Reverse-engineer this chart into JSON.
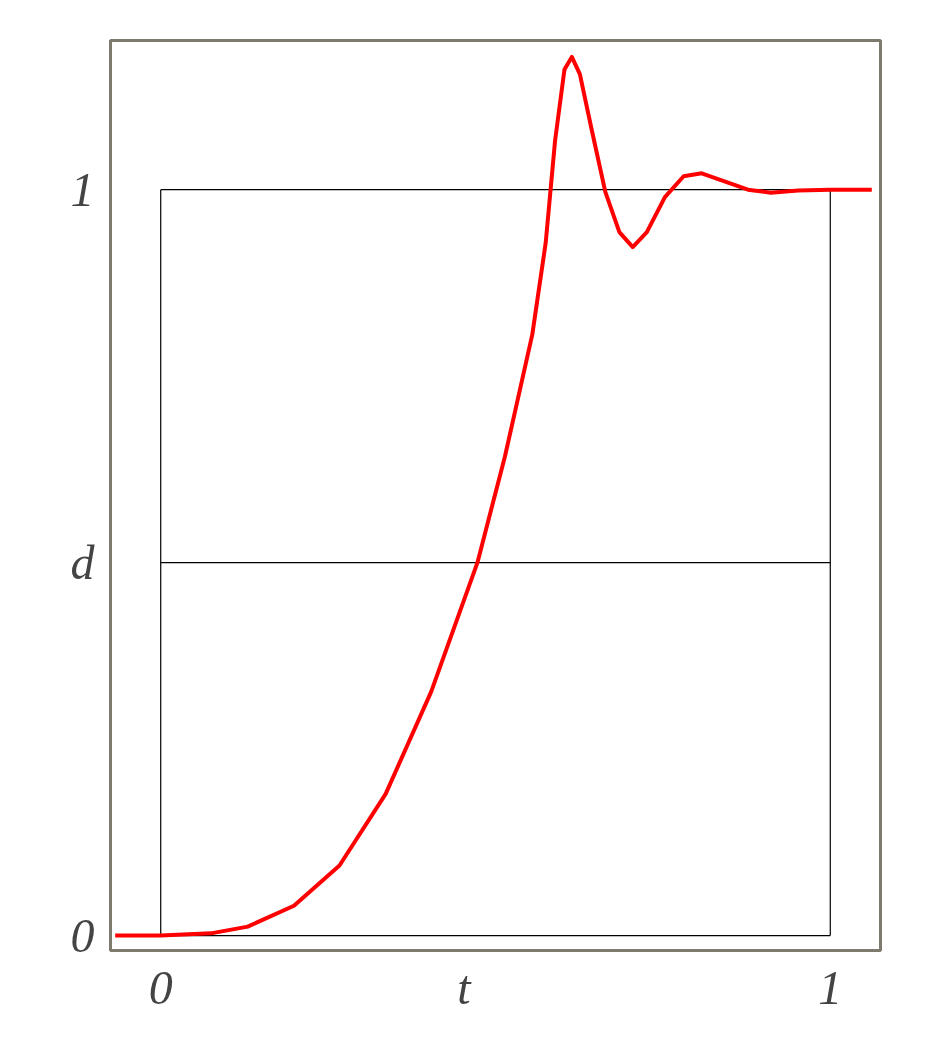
{
  "chart_data": {
    "type": "line",
    "x": [
      -0.068,
      0,
      0.075,
      0.13,
      0.199,
      0.267,
      0.336,
      0.404,
      0.473,
      0.514,
      0.555,
      0.575,
      0.589,
      0.603,
      0.614,
      0.626,
      0.644,
      0.664,
      0.685,
      0.705,
      0.726,
      0.753,
      0.781,
      0.808,
      0.842,
      0.877,
      0.911,
      0.952,
      1.0,
      1.062
    ],
    "series": [
      {
        "color": "#ff0000",
        "values": [
          0,
          0,
          0.003,
          0.012,
          0.04,
          0.094,
          0.19,
          0.327,
          0.5,
          0.642,
          0.806,
          0.929,
          1.066,
          1.161,
          1.178,
          1.155,
          1.079,
          0.997,
          0.943,
          0.923,
          0.943,
          0.99,
          1.018,
          1.022,
          1.011,
          1.0,
          0.996,
          0.999,
          1.0,
          1.0
        ]
      }
    ],
    "xlim": [
      -0.075,
      1.075
    ],
    "ylim": [
      -0.02,
      1.2
    ],
    "xticks": [
      0,
      {
        "value": 0.453,
        "label": "t"
      },
      1
    ],
    "yticks": [
      0,
      {
        "value": 0.5,
        "label": "d"
      },
      1
    ],
    "ref_lines": [
      {
        "axis": "x",
        "value": 0,
        "color": "#000000"
      },
      {
        "axis": "y",
        "value": 0,
        "color": "#000000"
      },
      {
        "axis": "x",
        "value": 1,
        "color": "#000000"
      },
      {
        "axis": "y",
        "value": 1,
        "color": "#000000"
      },
      {
        "axis": "y",
        "value": 0.5,
        "color": "#000000"
      }
    ],
    "grid": false,
    "marker": "none",
    "line_style": "solid"
  }
}
